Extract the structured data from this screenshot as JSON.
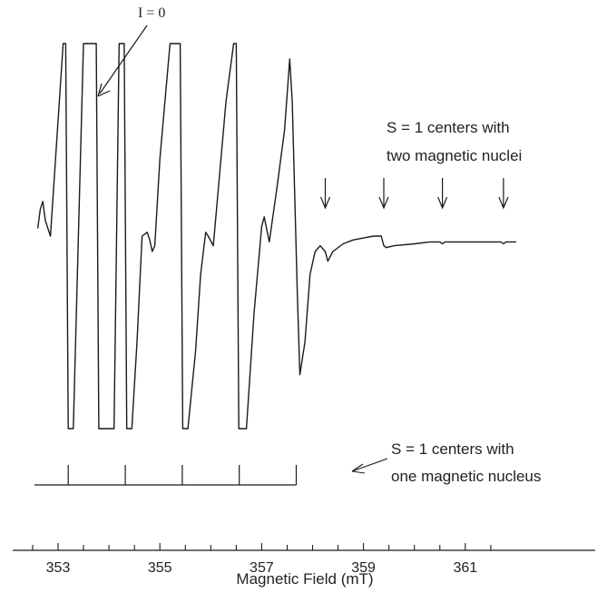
{
  "chart_data": {
    "type": "line",
    "title": "",
    "xlabel": "Magnetic Field (mT)",
    "ylabel": "",
    "xlim": [
      352.6,
      362.0
    ],
    "ylim": [
      -1.0,
      1.0
    ],
    "x_ticks_major": [
      353,
      355,
      357,
      359,
      361
    ],
    "x_ticks_minor": [
      352.5,
      353.0,
      353.5,
      354.0,
      354.5,
      355.0,
      355.5,
      356.0,
      356.5,
      357.0,
      357.5,
      358.0,
      358.5,
      359.0,
      359.5,
      360.0,
      360.5,
      361.0,
      361.5
    ],
    "x_tick_labels": [
      "353",
      "355",
      "357",
      "359",
      "361"
    ],
    "grid": false,
    "annotations": {
      "zero_spin": "I = 0",
      "two_nuclei_line1": "S = 1 centers with",
      "two_nuclei_line2": "two magnetic nuclei",
      "one_nucleus_line1": "S = 1 centers with",
      "one_nucleus_line2": "one magnetic nucleus"
    },
    "two_nuclei_markers_mT": [
      358.25,
      359.4,
      360.55,
      361.75
    ],
    "one_nucleus_stick_positions_mT": [
      353.2,
      354.32,
      355.44,
      356.56,
      357.68
    ],
    "series": [
      {
        "x": [
          352.6,
          352.65,
          352.7,
          352.75,
          352.85,
          353.0,
          353.1,
          353.12,
          353.15,
          353.2,
          353.3,
          353.5,
          353.7,
          353.75,
          353.8,
          353.9,
          354.1,
          354.2,
          354.25,
          354.3,
          354.35,
          354.45,
          354.55,
          354.65,
          354.75,
          354.8,
          354.85,
          354.9,
          355.0,
          355.2,
          355.3,
          355.4,
          355.45,
          355.55,
          355.7,
          355.8,
          355.9,
          355.95,
          356.05,
          356.3,
          356.45,
          356.5,
          356.55,
          356.7,
          356.85,
          357.0,
          357.05,
          357.15,
          357.3,
          357.45,
          357.55,
          357.6,
          357.65,
          357.7,
          357.75,
          357.85,
          357.95,
          358.05,
          358.15,
          358.25,
          358.3,
          358.4,
          358.6,
          358.8,
          359.0,
          359.2,
          359.35,
          359.4,
          359.45,
          359.6,
          360.0,
          360.3,
          360.5,
          360.55,
          360.6,
          360.8,
          361.2,
          361.5,
          361.7,
          361.75,
          361.8,
          362.0
        ],
        "y": [
          0.04,
          0.14,
          0.18,
          0.08,
          0.0,
          0.6,
          1.0,
          1.0,
          1.0,
          -1.0,
          -1.0,
          1.0,
          1.0,
          1.0,
          -1.0,
          -1.0,
          -1.0,
          1.0,
          1.0,
          1.0,
          -1.0,
          -1.0,
          -0.55,
          0.0,
          0.02,
          -0.02,
          -0.08,
          -0.05,
          0.4,
          1.0,
          1.0,
          1.0,
          -1.0,
          -1.0,
          -0.6,
          -0.2,
          0.02,
          0.0,
          -0.05,
          0.7,
          1.0,
          1.0,
          -1.0,
          -1.0,
          -0.4,
          0.05,
          0.1,
          -0.03,
          0.25,
          0.55,
          0.92,
          0.7,
          0.2,
          -0.3,
          -0.72,
          -0.55,
          -0.2,
          -0.08,
          -0.05,
          -0.08,
          -0.13,
          -0.08,
          -0.04,
          -0.02,
          -0.01,
          0.0,
          0.0,
          -0.05,
          -0.06,
          -0.05,
          -0.04,
          -0.03,
          -0.03,
          -0.04,
          -0.03,
          -0.03,
          -0.03,
          -0.03,
          -0.03,
          -0.04,
          -0.03,
          -0.03
        ]
      }
    ]
  }
}
